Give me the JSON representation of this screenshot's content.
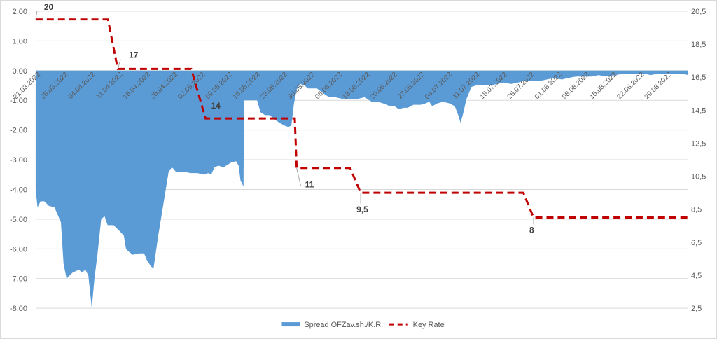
{
  "chart_data": {
    "type": "area",
    "title": "",
    "legend_position": "bottom",
    "grid": true,
    "x": [
      "21.03.2022",
      "28.03.2022",
      "04.04.2022",
      "11.04.2022",
      "18.04.2022",
      "25.04.2022",
      "02.05.2022",
      "09.05.2022",
      "16.05.2022",
      "23.05.2022",
      "30.05.2022",
      "06.06.2022",
      "13.06.2022",
      "20.06.2022",
      "27.06.2022",
      "04.07.2022",
      "11.07.2022",
      "18.07.2022",
      "25.07.2022",
      "01.08.2022",
      "08.08.2022",
      "15.08.2022",
      "22.08.2022",
      "29.08.2022"
    ],
    "y_left": {
      "min": -8,
      "max": 2,
      "ticks": [
        "2,00",
        "1,00",
        "0,00",
        "-1,00",
        "-2,00",
        "-3,00",
        "-4,00",
        "-5,00",
        "-6,00",
        "-7,00",
        "-8,00"
      ]
    },
    "y_right": {
      "min": 2.5,
      "max": 20.5,
      "ticks": [
        "20,5",
        "18,5",
        "16,5",
        "14,5",
        "12,5",
        "10,5",
        "8,5",
        "6,5",
        "4,5",
        "2,5"
      ]
    },
    "series": [
      {
        "name": "Spread OFZav.sh./K.R.",
        "kind": "area",
        "axis": "left",
        "color": "#5b9bd5",
        "points": [
          [
            0,
            -4.0
          ],
          [
            0.5,
            -4.6
          ],
          [
            1.3,
            -4.4
          ],
          [
            2.3,
            -4.4
          ],
          [
            3.5,
            -4.55
          ],
          [
            5,
            -4.6
          ],
          [
            6.7,
            -5.1
          ],
          [
            7.4,
            -6.5
          ],
          [
            8.2,
            -7.0
          ],
          [
            9.8,
            -6.8
          ],
          [
            11.5,
            -6.7
          ],
          [
            12.3,
            -6.8
          ],
          [
            13.2,
            -6.7
          ],
          [
            14,
            -6.9
          ],
          [
            14.9,
            -8.0
          ],
          [
            15.6,
            -7.0
          ],
          [
            16.4,
            -6.2
          ],
          [
            17.4,
            -5.0
          ],
          [
            18.3,
            -4.9
          ],
          [
            19.1,
            -5.2
          ],
          [
            20.7,
            -5.2
          ],
          [
            22.3,
            -5.4
          ],
          [
            23.4,
            -5.55
          ],
          [
            24,
            -6.0
          ],
          [
            24.8,
            -6.1
          ],
          [
            25.8,
            -6.2
          ],
          [
            27.4,
            -6.15
          ],
          [
            28.8,
            -6.15
          ],
          [
            29.6,
            -6.4
          ],
          [
            30.7,
            -6.6
          ],
          [
            31.3,
            -6.65
          ],
          [
            32.5,
            -5.6
          ],
          [
            33.9,
            -4.5
          ],
          [
            35.3,
            -3.4
          ],
          [
            36.2,
            -3.25
          ],
          [
            37.2,
            -3.4
          ],
          [
            39.1,
            -3.4
          ],
          [
            41.2,
            -3.45
          ],
          [
            43,
            -3.45
          ],
          [
            44.6,
            -3.5
          ],
          [
            45.8,
            -3.45
          ],
          [
            46.6,
            -3.5
          ],
          [
            47.5,
            -3.25
          ],
          [
            48.5,
            -3.2
          ],
          [
            49.9,
            -3.25
          ],
          [
            51.8,
            -3.1
          ],
          [
            53.2,
            -3.05
          ],
          [
            53.9,
            -3.2
          ],
          [
            54.4,
            -3.7
          ],
          [
            55.2,
            -3.9
          ],
          [
            55.3,
            -1.0
          ],
          [
            57.5,
            -1.0
          ],
          [
            58.8,
            -1.0
          ],
          [
            59.7,
            -1.4
          ],
          [
            60.9,
            -1.5
          ],
          [
            62.2,
            -1.5
          ],
          [
            63.5,
            -1.65
          ],
          [
            64.7,
            -1.75
          ],
          [
            66,
            -1.85
          ],
          [
            67.1,
            -1.9
          ],
          [
            67.9,
            -1.85
          ],
          [
            68.6,
            -1.1
          ],
          [
            69.4,
            -0.6
          ],
          [
            70.3,
            -0.45
          ],
          [
            71.4,
            -0.5
          ],
          [
            72.3,
            -0.6
          ],
          [
            74.7,
            -0.6
          ],
          [
            76.2,
            -0.75
          ],
          [
            77.9,
            -0.9
          ],
          [
            79.6,
            -0.9
          ],
          [
            81.4,
            -0.95
          ],
          [
            83.8,
            -0.95
          ],
          [
            85.6,
            -0.95
          ],
          [
            87.3,
            -0.9
          ],
          [
            89.2,
            -1.05
          ],
          [
            90.8,
            -1.05
          ],
          [
            92.2,
            -1.1
          ],
          [
            94.1,
            -1.2
          ],
          [
            95.3,
            -1.2
          ],
          [
            96.4,
            -1.3
          ],
          [
            97.7,
            -1.25
          ],
          [
            98.8,
            -1.25
          ],
          [
            100.3,
            -1.15
          ],
          [
            102.2,
            -1.15
          ],
          [
            103.6,
            -1.1
          ],
          [
            104.5,
            -1.05
          ],
          [
            105.3,
            -1.2
          ],
          [
            106.7,
            -1.1
          ],
          [
            108.2,
            -1.05
          ],
          [
            109.8,
            -1.1
          ],
          [
            111.3,
            -1.2
          ],
          [
            112.2,
            -1.5
          ],
          [
            112.8,
            -1.75
          ],
          [
            113.4,
            -1.5
          ],
          [
            114.4,
            -0.95
          ],
          [
            115.7,
            -0.55
          ],
          [
            116.9,
            -0.5
          ],
          [
            118.4,
            -0.5
          ],
          [
            120.6,
            -0.5
          ],
          [
            122.5,
            -0.45
          ],
          [
            124.3,
            -0.4
          ],
          [
            126.2,
            -0.45
          ],
          [
            128.1,
            -0.4
          ],
          [
            129.6,
            -0.35
          ],
          [
            131.3,
            -0.35
          ],
          [
            133.8,
            -0.35
          ],
          [
            135.7,
            -0.3
          ],
          [
            137.5,
            -0.25
          ],
          [
            139.8,
            -0.3
          ],
          [
            141.1,
            -0.25
          ],
          [
            143.5,
            -0.2
          ],
          [
            145.7,
            -0.2
          ],
          [
            147.5,
            -0.2
          ],
          [
            149.5,
            -0.15
          ],
          [
            151.3,
            -0.2
          ],
          [
            153.9,
            -0.15
          ],
          [
            156.4,
            -0.1
          ],
          [
            158.3,
            -0.1
          ],
          [
            160.1,
            -0.1
          ],
          [
            162.2,
            -0.12
          ],
          [
            163.3,
            -0.15
          ],
          [
            165.3,
            -0.1
          ],
          [
            167.4,
            -0.1
          ],
          [
            169.9,
            -0.1
          ],
          [
            171.6,
            -0.1
          ],
          [
            173.3,
            -0.15
          ]
        ]
      },
      {
        "name": "Key Rate",
        "kind": "line",
        "axis": "right",
        "color": "#c00000",
        "dash": "dashed",
        "points": [
          [
            0,
            20
          ],
          [
            19.2,
            20
          ],
          [
            21.8,
            17
          ],
          [
            41.3,
            17
          ],
          [
            45.1,
            14
          ],
          [
            68.8,
            14
          ],
          [
            69.3,
            11
          ],
          [
            83.5,
            11
          ],
          [
            86.3,
            9.5
          ],
          [
            129.5,
            9.5
          ],
          [
            132.2,
            8
          ],
          [
            173.3,
            8
          ]
        ]
      }
    ],
    "data_labels": [
      {
        "text": "20",
        "x": 0,
        "value": 20
      },
      {
        "text": "17",
        "x": 21.8,
        "value": 17
      },
      {
        "text": "14",
        "x": 45.1,
        "value": 14
      },
      {
        "text": "11",
        "x": 69.3,
        "value": 11
      },
      {
        "text": "9,5",
        "x": 86.3,
        "value": 9.5
      },
      {
        "text": "8",
        "x": 132.2,
        "value": 8
      }
    ]
  }
}
